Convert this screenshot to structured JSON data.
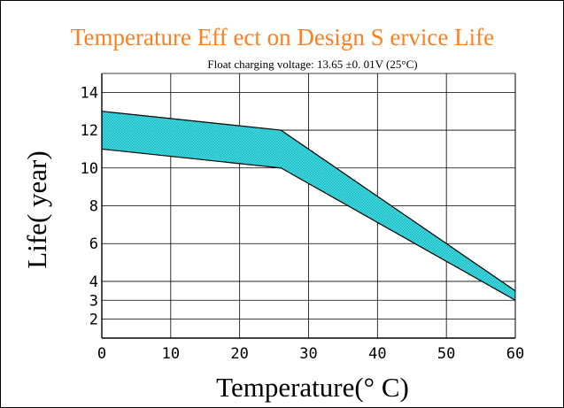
{
  "chart_data": {
    "type": "area",
    "title": "Temperature Eff ect on Design S  ervice Life",
    "subtitle": "Float charging voltage:  13.65 ±0.      01V (25°C)",
    "xlabel": "Temperature(° C)",
    "ylabel": "Life( year)",
    "xlim": [
      0,
      60
    ],
    "ylim": [
      1,
      15
    ],
    "x_ticks": [
      0,
      10,
      20,
      30,
      40,
      50,
      60
    ],
    "y_ticks": [
      2,
      3,
      4,
      6,
      8,
      10,
      12,
      14
    ],
    "grid": true,
    "x": [
      0,
      26,
      60
    ],
    "series": [
      {
        "values": [
          13,
          12,
          3.5
        ]
      },
      {
        "values": [
          11,
          10,
          3.0
        ]
      }
    ]
  },
  "colors": {
    "title": "#ff7f1e",
    "band_fill": "#3fe0e6",
    "band_hatch": "#1aa8b0",
    "axis": "#000000",
    "grid": "#000000"
  }
}
